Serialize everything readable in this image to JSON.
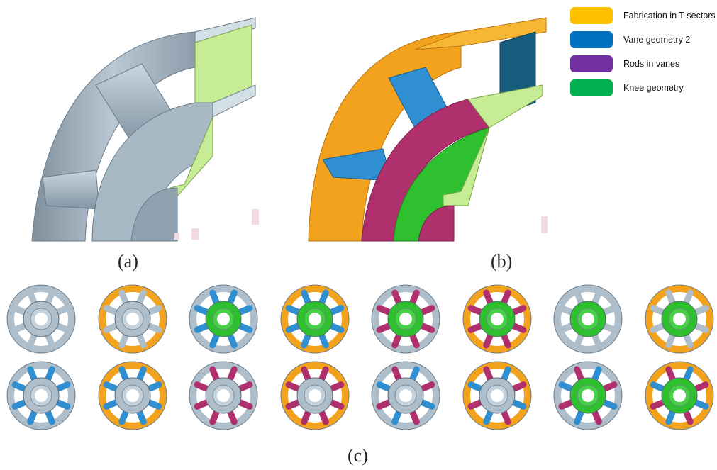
{
  "legend": {
    "items": [
      {
        "label": "Fabrication in T-sectors",
        "color": "#FFC000"
      },
      {
        "label": "Vane geometry 2",
        "color": "#0070C0"
      },
      {
        "label": "Rods in vanes",
        "color": "#7030A0"
      },
      {
        "label": "Knee geometry",
        "color": "#00B050"
      }
    ]
  },
  "captions": {
    "a": "(a)",
    "b": "(b)",
    "c": "(c)"
  },
  "colors": {
    "base_gray": "#aebecb",
    "orange": "#f2a21c",
    "blue": "#2f8fd0",
    "magenta": "#b0306e",
    "green": "#2fc02f",
    "flange_green": "#c6ec96"
  },
  "grid": {
    "rows": [
      [
        {
          "ring": "gray",
          "vanes": "gray",
          "hub": "gray"
        },
        {
          "ring": "orange",
          "vanes": "gray",
          "hub": "gray"
        },
        {
          "ring": "gray",
          "vanes": "blue",
          "hub": "green"
        },
        {
          "ring": "orange",
          "vanes": "blue",
          "hub": "green"
        },
        {
          "ring": "gray",
          "vanes": "magenta",
          "hub": "green"
        },
        {
          "ring": "orange",
          "vanes": "magenta",
          "hub": "green"
        },
        {
          "ring": "gray",
          "vanes": "gray",
          "hub": "green"
        },
        {
          "ring": "orange",
          "vanes": "gray",
          "hub": "green"
        }
      ],
      [
        {
          "ring": "gray",
          "vanes": "blue",
          "hub": "gray"
        },
        {
          "ring": "orange",
          "vanes": "blue",
          "hub": "gray"
        },
        {
          "ring": "gray",
          "vanes": "magenta",
          "hub": "gray"
        },
        {
          "ring": "orange",
          "vanes": "magenta",
          "hub": "gray"
        },
        {
          "ring": "gray",
          "vanes": "bluemag",
          "hub": "gray"
        },
        {
          "ring": "orange",
          "vanes": "bluemag",
          "hub": "gray"
        },
        {
          "ring": "gray",
          "vanes": "bluemag",
          "hub": "green"
        },
        {
          "ring": "orange",
          "vanes": "bluemag",
          "hub": "green"
        }
      ]
    ]
  }
}
